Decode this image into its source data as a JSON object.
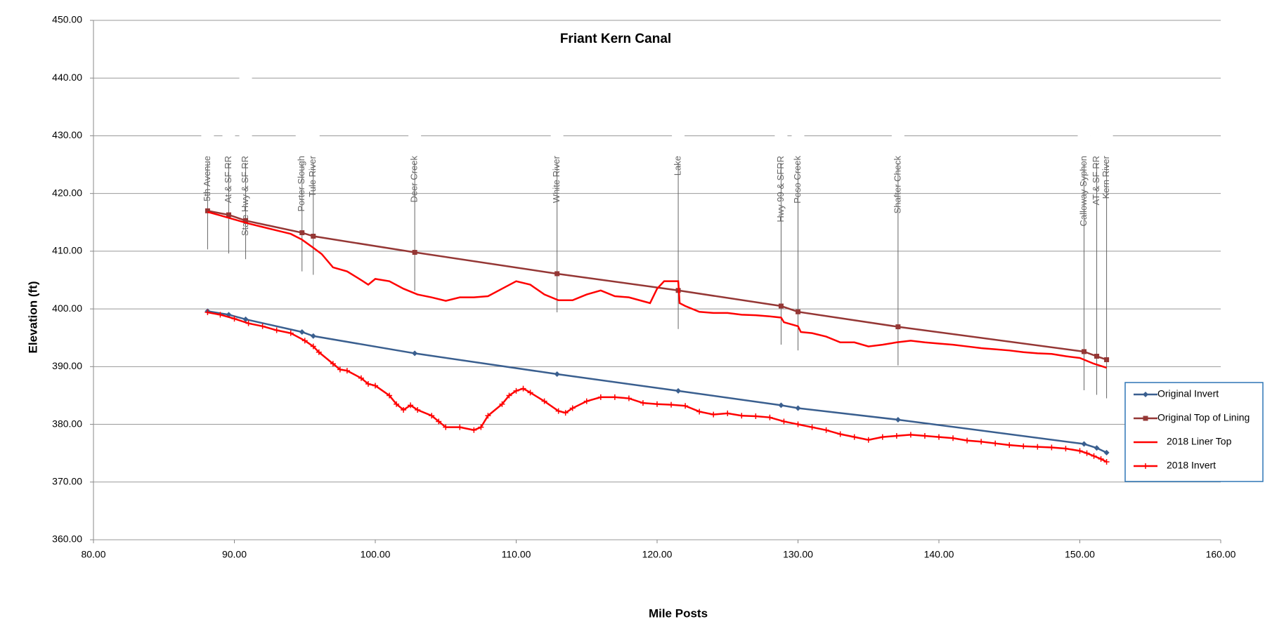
{
  "chart_data": {
    "type": "line",
    "title": "Friant Kern Canal",
    "x_label": "Mile Posts",
    "y_label": "Elevation (ft)",
    "xlim": [
      80,
      160
    ],
    "ylim": [
      360,
      450
    ],
    "xticks": [
      {
        "value": 80,
        "label": "80.00"
      },
      {
        "value": 90,
        "label": "90.00"
      },
      {
        "value": 100,
        "label": "100.00"
      },
      {
        "value": 110,
        "label": "110.00"
      },
      {
        "value": 120,
        "label": "120.00"
      },
      {
        "value": 130,
        "label": "130.00"
      },
      {
        "value": 140,
        "label": "140.00"
      },
      {
        "value": 150,
        "label": "150.00"
      },
      {
        "value": 160,
        "label": "160.00"
      }
    ],
    "yticks": [
      {
        "value": 360,
        "label": "360.00"
      },
      {
        "value": 370,
        "label": "370.00"
      },
      {
        "value": 380,
        "label": "380.00"
      },
      {
        "value": 390,
        "label": "390.00"
      },
      {
        "value": 400,
        "label": "400.00"
      },
      {
        "value": 410,
        "label": "410.00"
      },
      {
        "value": 420,
        "label": "420.00"
      },
      {
        "value": 430,
        "label": "430.00"
      },
      {
        "value": 440,
        "label": "440.00"
      },
      {
        "value": 450,
        "label": "450.00"
      }
    ],
    "grid": true,
    "legend": "right",
    "annotations": [
      {
        "text": "5th Avenue",
        "x": 88.1
      },
      {
        "text": "At & SF RR",
        "x": 89.6
      },
      {
        "text": "State Hwy & SF RR",
        "x": 90.8
      },
      {
        "text": "Porter Slough",
        "x": 94.8
      },
      {
        "text": "Tule River",
        "x": 95.6
      },
      {
        "text": "Deer Creek",
        "x": 102.8
      },
      {
        "text": "White River",
        "x": 112.9
      },
      {
        "text": "Lake",
        "x": 121.5
      },
      {
        "text": "Hwy 99 & SFRR",
        "x": 128.8
      },
      {
        "text": "Poso Creek",
        "x": 130.0
      },
      {
        "text": "Shafter Check",
        "x": 137.1
      },
      {
        "text": "Calloway Syphon",
        "x": 150.3
      },
      {
        "text": "AT & SF RR",
        "x": 151.2
      },
      {
        "text": "Kern River",
        "x": 151.9
      }
    ],
    "series": [
      {
        "name": "Original Invert",
        "color": "#3a5f8f",
        "marker": "diamond",
        "x": [
          88.1,
          89.6,
          90.8,
          94.8,
          95.6,
          102.8,
          112.9,
          121.5,
          128.8,
          130.0,
          137.1,
          150.3,
          151.2,
          151.9
        ],
        "values": [
          399.6,
          399.0,
          398.2,
          396.0,
          395.3,
          392.3,
          388.7,
          385.8,
          383.3,
          382.8,
          380.8,
          376.6,
          375.9,
          375.1
        ]
      },
      {
        "name": "Original Top of Lining",
        "color": "#953735",
        "marker": "square",
        "x": [
          88.1,
          89.6,
          90.8,
          94.8,
          95.6,
          102.8,
          112.9,
          121.5,
          128.8,
          130.0,
          137.1,
          150.3,
          151.2,
          151.9
        ],
        "values": [
          417.0,
          416.3,
          415.3,
          413.2,
          412.6,
          409.8,
          406.1,
          403.2,
          400.5,
          399.5,
          396.9,
          392.6,
          391.8,
          391.2
        ]
      },
      {
        "name": "2018 Liner Top",
        "color": "#ff0000",
        "marker": "none",
        "x": [
          88.1,
          89,
          90,
          91,
          92,
          93,
          94,
          94.8,
          95.6,
          96.2,
          97,
          98,
          99,
          99.5,
          100,
          101,
          102,
          103,
          104,
          105,
          106,
          107,
          108,
          109,
          110,
          111,
          112,
          113,
          114,
          115,
          116,
          117,
          118,
          119.5,
          120,
          120.5,
          121.5,
          121.6,
          122,
          123,
          124,
          125,
          126,
          127,
          128,
          128.8,
          129,
          130,
          130.2,
          131,
          132,
          133,
          134,
          135,
          136,
          137,
          138,
          139,
          140,
          141,
          142,
          143,
          144,
          145,
          146,
          147,
          148,
          149,
          150,
          150.5,
          151,
          151.9
        ],
        "values": [
          416.8,
          416.2,
          415.5,
          414.8,
          414.2,
          413.6,
          413.0,
          412.0,
          410.6,
          409.5,
          407.2,
          406.5,
          405,
          404.2,
          405.2,
          404.8,
          403.5,
          402.5,
          402.0,
          401.4,
          402.0,
          402.0,
          402.2,
          403.5,
          404.8,
          404.2,
          402.5,
          401.5,
          401.5,
          402.5,
          403.2,
          402.2,
          402,
          401,
          403.5,
          404.8,
          404.8,
          401,
          400.5,
          399.5,
          399.3,
          399.3,
          399,
          398.9,
          398.7,
          398.5,
          397.7,
          397,
          396,
          395.8,
          395.2,
          394.2,
          394.2,
          393.5,
          393.8,
          394.2,
          394.5,
          394.2,
          394.0,
          393.8,
          393.5,
          393.2,
          393.0,
          392.8,
          392.5,
          392.3,
          392.2,
          391.8,
          391.5,
          391.0,
          390.5,
          389.8
        ]
      },
      {
        "name": "2018 Invert",
        "color": "#ff0000",
        "marker": "plus",
        "x": [
          88.1,
          89,
          90,
          91,
          92,
          93,
          94,
          95,
          95.6,
          96,
          97,
          97.5,
          98,
          99,
          99.5,
          100,
          101,
          101.5,
          102,
          102.5,
          103,
          104,
          104.5,
          105,
          106,
          107,
          107.5,
          108,
          109,
          109.5,
          110,
          110.5,
          111,
          112,
          113,
          113.5,
          114,
          115,
          116,
          117,
          118,
          119,
          120,
          121,
          122,
          123,
          124,
          125,
          126,
          127,
          128,
          129,
          130,
          131,
          132,
          133,
          134,
          135,
          136,
          137,
          138,
          139,
          140,
          141,
          142,
          143,
          144,
          145,
          146,
          147,
          148,
          149,
          150,
          150.5,
          151,
          151.5,
          151.9
        ],
        "values": [
          399.4,
          399,
          398.3,
          397.5,
          397,
          396.3,
          395.8,
          394.5,
          393.5,
          392.5,
          390.5,
          389.5,
          389.3,
          388,
          387,
          386.7,
          385,
          383.5,
          382.5,
          383.3,
          382.5,
          381.5,
          380.5,
          379.5,
          379.5,
          379,
          379.5,
          381.5,
          383.5,
          385,
          385.8,
          386.2,
          385.5,
          384,
          382.3,
          382,
          382.8,
          384,
          384.7,
          384.7,
          384.5,
          383.7,
          383.5,
          383.4,
          383.2,
          382.2,
          381.7,
          381.9,
          381.5,
          381.4,
          381.2,
          380.5,
          380,
          379.5,
          379,
          378.3,
          377.8,
          377.3,
          377.8,
          378.0,
          378.2,
          378.0,
          377.8,
          377.6,
          377.2,
          377.0,
          376.7,
          376.4,
          376.2,
          376.1,
          376.0,
          375.8,
          375.4,
          375,
          374.5,
          374,
          373.5
        ]
      }
    ]
  }
}
